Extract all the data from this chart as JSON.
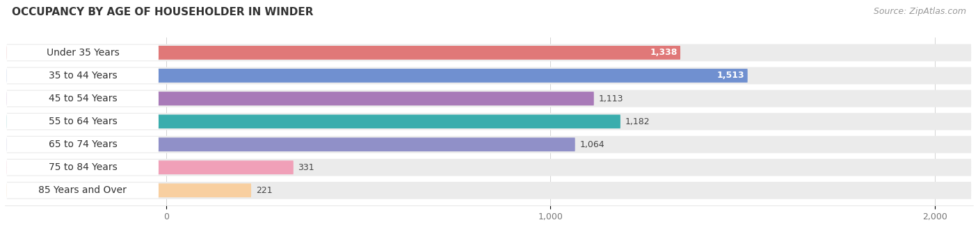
{
  "title": "OCCUPANCY BY AGE OF HOUSEHOLDER IN WINDER",
  "source": "Source: ZipAtlas.com",
  "categories": [
    "Under 35 Years",
    "35 to 44 Years",
    "45 to 54 Years",
    "55 to 64 Years",
    "65 to 74 Years",
    "75 to 84 Years",
    "85 Years and Over"
  ],
  "values": [
    1338,
    1513,
    1113,
    1182,
    1064,
    331,
    221
  ],
  "bar_colors": [
    "#E07878",
    "#7090D0",
    "#A87AB8",
    "#3AADAD",
    "#9090C8",
    "#F0A0B8",
    "#F8CFA0"
  ],
  "label_text_colors": [
    "white",
    "white",
    "black",
    "black",
    "black",
    "black",
    "black"
  ],
  "background_color": "#FFFFFF",
  "bar_bg_color": "#EBEBEB",
  "white_pill_color": "#FFFFFF",
  "xlim_min": 0,
  "xlim_max": 2000,
  "xticks": [
    0,
    1000,
    2000
  ],
  "title_fontsize": 11,
  "source_fontsize": 9,
  "bar_label_fontsize": 9,
  "category_fontsize": 10
}
